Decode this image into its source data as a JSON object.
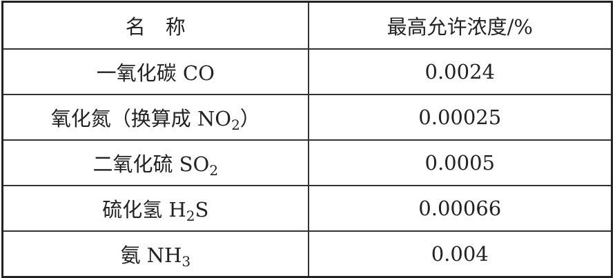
{
  "header": {
    "name": "名　称",
    "limit": "最高允许浓度/%"
  },
  "rows": [
    {
      "name": {
        "pre": "一氧化碳 CO",
        "sub": "",
        "post": ""
      },
      "value": "0.0024"
    },
    {
      "name": {
        "pre": "氧化氮（换算成 NO",
        "sub": "2",
        "post": "）"
      },
      "value": "0.00025"
    },
    {
      "name": {
        "pre": "二氧化硫 SO",
        "sub": "2",
        "post": ""
      },
      "value": "0.0005"
    },
    {
      "name": {
        "pre": "硫化氢 H",
        "sub": "2",
        "post": "S"
      },
      "value": "0.00066"
    },
    {
      "name": {
        "pre": "氨 NH",
        "sub": "3",
        "post": ""
      },
      "value": "0.004"
    }
  ]
}
